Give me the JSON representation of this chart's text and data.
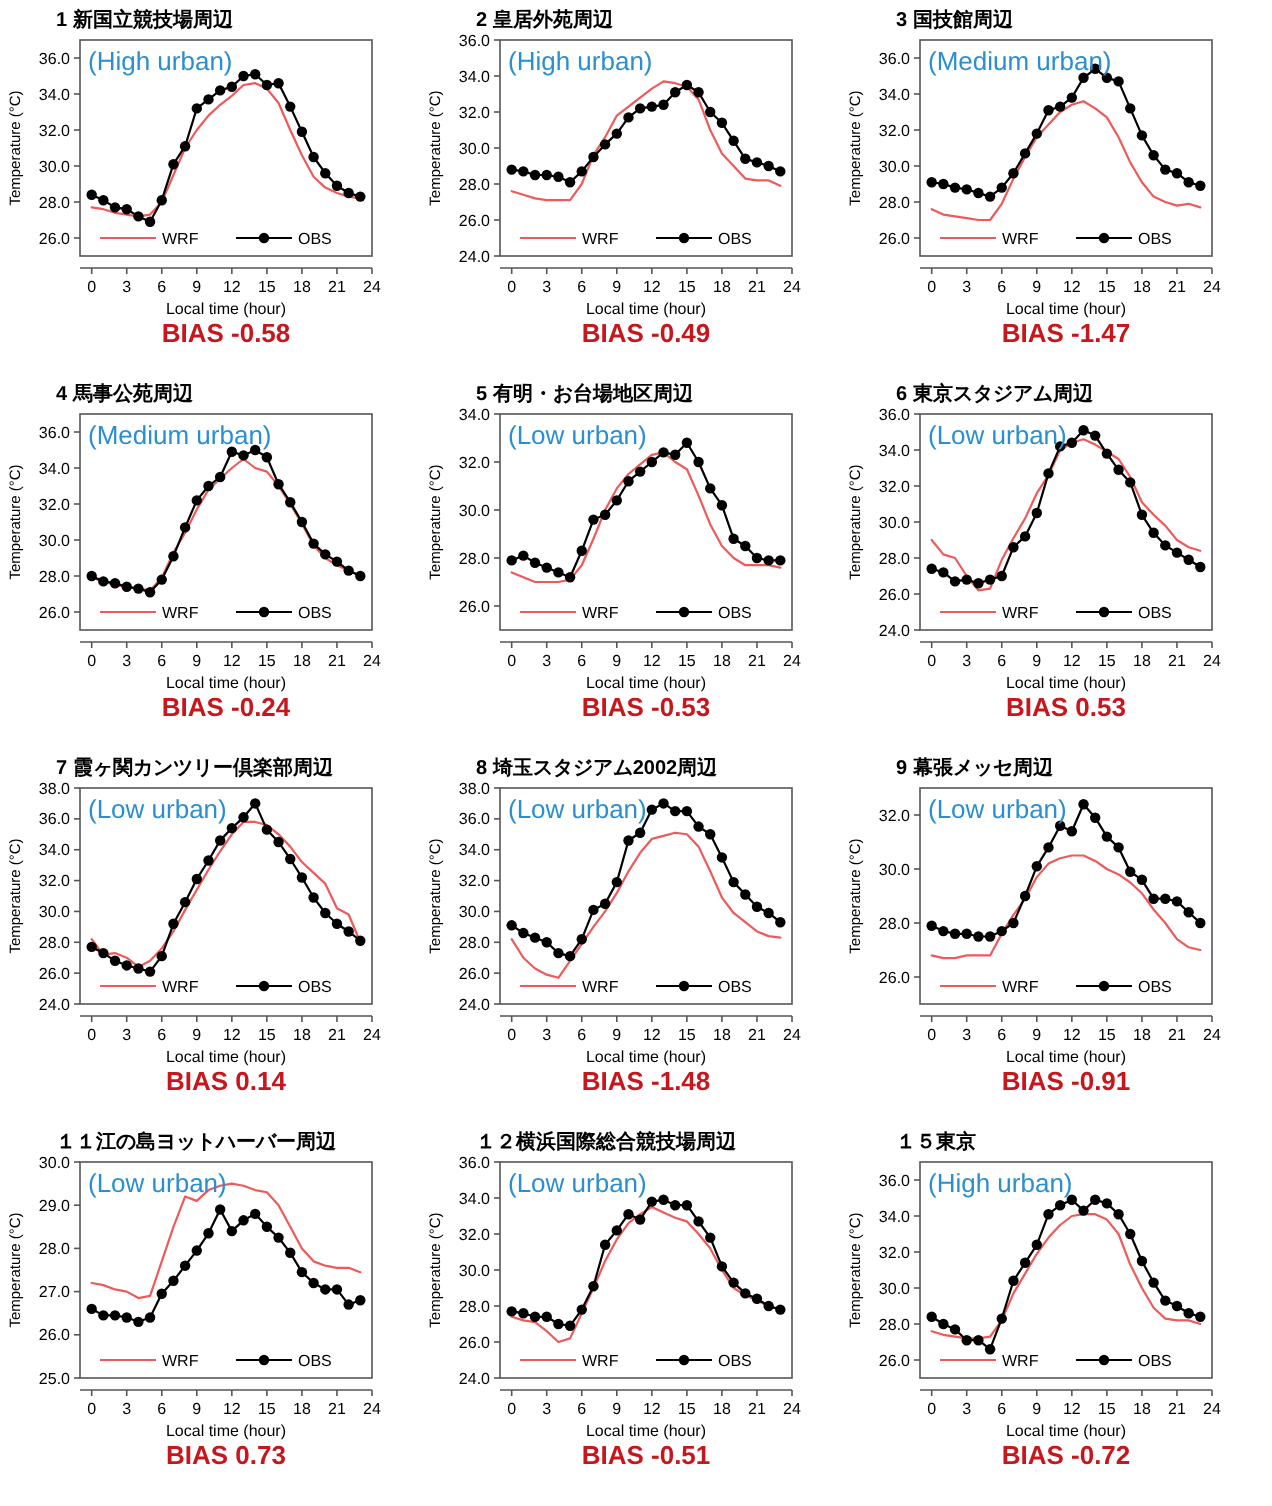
{
  "chart_data": [
    {
      "type": "line",
      "title": "1 新国立競技場周辺",
      "xlabel": "Local time (hour)",
      "ylabel": "Temperature (°C)",
      "annotations": [
        "(High urban)",
        "BIAS -0.58"
      ],
      "legend": "bottom",
      "x": [
        0,
        1,
        2,
        3,
        4,
        5,
        6,
        7,
        8,
        9,
        10,
        11,
        12,
        13,
        14,
        15,
        16,
        17,
        18,
        19,
        20,
        21,
        22,
        23
      ],
      "xlim": [
        -1,
        24
      ],
      "xticks": [
        0,
        3,
        6,
        9,
        12,
        15,
        18,
        21,
        24
      ],
      "ylim": [
        25,
        37
      ],
      "yticks": [
        {
          "value": 26,
          "label": "26.0"
        },
        {
          "value": 28,
          "label": "28.0"
        },
        {
          "value": 30,
          "label": "30.0"
        },
        {
          "value": 32,
          "label": "32.0"
        },
        {
          "value": 34,
          "label": "34.0"
        },
        {
          "value": 36,
          "label": "36.0"
        }
      ],
      "series": [
        {
          "name": "WRF",
          "color": "#ee5a5a",
          "marker": "none",
          "values": [
            27.7,
            27.6,
            27.4,
            27.3,
            27.2,
            27.3,
            28.0,
            29.5,
            31.0,
            32.0,
            32.8,
            33.4,
            33.9,
            34.5,
            34.6,
            34.3,
            33.5,
            32.0,
            30.6,
            29.4,
            28.8,
            28.5,
            28.3,
            28.2
          ]
        },
        {
          "name": "OBS",
          "color": "#000000",
          "marker": "circle",
          "values": [
            28.4,
            28.1,
            27.7,
            27.6,
            27.2,
            26.9,
            28.1,
            30.1,
            31.1,
            33.2,
            33.7,
            34.2,
            34.4,
            35.0,
            35.1,
            34.5,
            34.6,
            33.3,
            31.9,
            30.5,
            29.6,
            28.9,
            28.5,
            28.3
          ]
        }
      ]
    },
    {
      "type": "line",
      "title": "2 皇居外苑周辺",
      "xlabel": "Local time (hour)",
      "ylabel": "Temperature (°C)",
      "annotations": [
        "(High urban)",
        "BIAS -0.49"
      ],
      "legend": "bottom",
      "x": [
        0,
        1,
        2,
        3,
        4,
        5,
        6,
        7,
        8,
        9,
        10,
        11,
        12,
        13,
        14,
        15,
        16,
        17,
        18,
        19,
        20,
        21,
        22,
        23
      ],
      "xlim": [
        -1,
        24
      ],
      "xticks": [
        0,
        3,
        6,
        9,
        12,
        15,
        18,
        21,
        24
      ],
      "ylim": [
        24,
        36
      ],
      "yticks": [
        {
          "value": 24,
          "label": "24.0"
        },
        {
          "value": 26,
          "label": "26.0"
        },
        {
          "value": 28,
          "label": "28.0"
        },
        {
          "value": 30,
          "label": "30.0"
        },
        {
          "value": 32,
          "label": "32.0"
        },
        {
          "value": 34,
          "label": "34.0"
        },
        {
          "value": 36,
          "label": "36.0"
        }
      ],
      "series": [
        {
          "name": "WRF",
          "color": "#ee5a5a",
          "marker": "none",
          "values": [
            27.6,
            27.4,
            27.2,
            27.1,
            27.1,
            27.1,
            28.0,
            29.6,
            30.6,
            31.8,
            32.3,
            32.8,
            33.3,
            33.7,
            33.6,
            33.4,
            32.7,
            31.0,
            29.7,
            29.0,
            28.3,
            28.2,
            28.2,
            27.9
          ]
        },
        {
          "name": "OBS",
          "color": "#000000",
          "marker": "circle",
          "values": [
            28.8,
            28.7,
            28.5,
            28.5,
            28.4,
            28.1,
            28.7,
            29.5,
            30.2,
            30.8,
            31.7,
            32.2,
            32.3,
            32.4,
            33.1,
            33.5,
            33.1,
            32.0,
            31.4,
            30.4,
            29.4,
            29.2,
            29.0,
            28.7
          ]
        }
      ]
    },
    {
      "type": "line",
      "title": "3 国技館周辺",
      "xlabel": "Local time (hour)",
      "ylabel": "Temperature (°C)",
      "annotations": [
        "(Medium urban)",
        "BIAS -1.47"
      ],
      "legend": "bottom",
      "x": [
        0,
        1,
        2,
        3,
        4,
        5,
        6,
        7,
        8,
        9,
        10,
        11,
        12,
        13,
        14,
        15,
        16,
        17,
        18,
        19,
        20,
        21,
        22,
        23
      ],
      "xlim": [
        -1,
        24
      ],
      "xticks": [
        0,
        3,
        6,
        9,
        12,
        15,
        18,
        21,
        24
      ],
      "ylim": [
        25,
        37
      ],
      "yticks": [
        {
          "value": 26,
          "label": "26.0"
        },
        {
          "value": 28,
          "label": "28.0"
        },
        {
          "value": 30,
          "label": "30.0"
        },
        {
          "value": 32,
          "label": "32.0"
        },
        {
          "value": 34,
          "label": "34.0"
        },
        {
          "value": 36,
          "label": "36.0"
        }
      ],
      "series": [
        {
          "name": "WRF",
          "color": "#ee5a5a",
          "marker": "none",
          "values": [
            27.6,
            27.3,
            27.2,
            27.1,
            27.0,
            27.0,
            27.9,
            29.3,
            30.5,
            31.6,
            32.3,
            33.0,
            33.4,
            33.6,
            33.2,
            32.7,
            31.6,
            30.2,
            29.1,
            28.3,
            28.0,
            27.8,
            27.9,
            27.7
          ]
        },
        {
          "name": "OBS",
          "color": "#000000",
          "marker": "circle",
          "values": [
            29.1,
            29.0,
            28.8,
            28.7,
            28.5,
            28.3,
            28.8,
            29.6,
            30.7,
            31.8,
            33.1,
            33.3,
            33.8,
            34.9,
            35.4,
            34.9,
            34.7,
            33.2,
            31.7,
            30.6,
            29.8,
            29.6,
            29.1,
            28.9
          ]
        }
      ]
    },
    {
      "type": "line",
      "title": "4 馬事公苑周辺",
      "xlabel": "Local time (hour)",
      "ylabel": "Temperature (°C)",
      "annotations": [
        "(Medium urban)",
        "BIAS -0.24"
      ],
      "legend": "bottom",
      "x": [
        0,
        1,
        2,
        3,
        4,
        5,
        6,
        7,
        8,
        9,
        10,
        11,
        12,
        13,
        14,
        15,
        16,
        17,
        18,
        19,
        20,
        21,
        22,
        23
      ],
      "xlim": [
        -1,
        24
      ],
      "xticks": [
        0,
        3,
        6,
        9,
        12,
        15,
        18,
        21,
        24
      ],
      "ylim": [
        25,
        37
      ],
      "yticks": [
        {
          "value": 26,
          "label": "26.0"
        },
        {
          "value": 28,
          "label": "28.0"
        },
        {
          "value": 30,
          "label": "30.0"
        },
        {
          "value": 32,
          "label": "32.0"
        },
        {
          "value": 34,
          "label": "34.0"
        },
        {
          "value": 36,
          "label": "36.0"
        }
      ],
      "series": [
        {
          "name": "WRF",
          "color": "#ee5a5a",
          "marker": "none",
          "values": [
            27.9,
            27.7,
            27.5,
            27.4,
            27.3,
            27.2,
            27.9,
            29.3,
            30.4,
            31.7,
            32.8,
            33.4,
            34.0,
            34.5,
            34.0,
            33.8,
            33.0,
            32.0,
            30.9,
            29.7,
            29.0,
            28.6,
            28.3,
            28.0
          ]
        },
        {
          "name": "OBS",
          "color": "#000000",
          "marker": "circle",
          "values": [
            28.0,
            27.7,
            27.6,
            27.4,
            27.3,
            27.1,
            27.8,
            29.1,
            30.7,
            32.2,
            33.0,
            33.5,
            34.9,
            34.7,
            35.0,
            34.6,
            33.1,
            32.1,
            31.0,
            29.8,
            29.2,
            28.8,
            28.3,
            28.0
          ]
        }
      ]
    },
    {
      "type": "line",
      "title": "5 有明・お台場地区周辺",
      "xlabel": "Local time (hour)",
      "ylabel": "Temperature (°C)",
      "annotations": [
        "(Low urban)",
        "BIAS -0.53"
      ],
      "legend": "bottom",
      "x": [
        0,
        1,
        2,
        3,
        4,
        5,
        6,
        7,
        8,
        9,
        10,
        11,
        12,
        13,
        14,
        15,
        16,
        17,
        18,
        19,
        20,
        21,
        22,
        23
      ],
      "xlim": [
        -1,
        24
      ],
      "xticks": [
        0,
        3,
        6,
        9,
        12,
        15,
        18,
        21,
        24
      ],
      "ylim": [
        25,
        34
      ],
      "yticks": [
        {
          "value": 26,
          "label": "26.0"
        },
        {
          "value": 28,
          "label": "28.0"
        },
        {
          "value": 30,
          "label": "30.0"
        },
        {
          "value": 32,
          "label": "32.0"
        },
        {
          "value": 34,
          "label": "34.0"
        }
      ],
      "series": [
        {
          "name": "WRF",
          "color": "#ee5a5a",
          "marker": "none",
          "values": [
            27.4,
            27.2,
            27.0,
            27.0,
            27.0,
            27.1,
            27.7,
            28.8,
            30.0,
            30.9,
            31.5,
            31.9,
            32.3,
            32.4,
            32.0,
            31.7,
            30.6,
            29.4,
            28.5,
            28.0,
            27.7,
            27.7,
            27.7,
            27.6
          ]
        },
        {
          "name": "OBS",
          "color": "#000000",
          "marker": "circle",
          "values": [
            27.9,
            28.1,
            27.8,
            27.6,
            27.4,
            27.2,
            28.3,
            29.6,
            29.8,
            30.4,
            31.2,
            31.6,
            32.0,
            32.4,
            32.3,
            32.8,
            32.0,
            30.9,
            30.2,
            28.8,
            28.5,
            28.0,
            27.9,
            27.9
          ]
        }
      ]
    },
    {
      "type": "line",
      "title": "6 東京スタジアム周辺",
      "xlabel": "Local time (hour)",
      "ylabel": "Temperature (°C)",
      "annotations": [
        "(Low urban)",
        "BIAS 0.53"
      ],
      "legend": "bottom",
      "x": [
        0,
        1,
        2,
        3,
        4,
        5,
        6,
        7,
        8,
        9,
        10,
        11,
        12,
        13,
        14,
        15,
        16,
        17,
        18,
        19,
        20,
        21,
        22,
        23
      ],
      "xlim": [
        -1,
        24
      ],
      "xticks": [
        0,
        3,
        6,
        9,
        12,
        15,
        18,
        21,
        24
      ],
      "ylim": [
        24,
        36
      ],
      "yticks": [
        {
          "value": 24,
          "label": "24.0"
        },
        {
          "value": 26,
          "label": "26.0"
        },
        {
          "value": 28,
          "label": "28.0"
        },
        {
          "value": 30,
          "label": "30.0"
        },
        {
          "value": 32,
          "label": "32.0"
        },
        {
          "value": 34,
          "label": "34.0"
        },
        {
          "value": 36,
          "label": "36.0"
        }
      ],
      "series": [
        {
          "name": "WRF",
          "color": "#ee5a5a",
          "marker": "none",
          "values": [
            29.0,
            28.2,
            28.0,
            27.0,
            26.2,
            26.3,
            27.9,
            29.1,
            30.2,
            31.6,
            32.6,
            34.0,
            34.4,
            34.6,
            34.3,
            33.9,
            33.5,
            32.5,
            31.1,
            30.4,
            29.8,
            29.0,
            28.6,
            28.4
          ]
        },
        {
          "name": "OBS",
          "color": "#000000",
          "marker": "circle",
          "values": [
            27.4,
            27.2,
            26.7,
            26.8,
            26.6,
            26.8,
            27.0,
            28.6,
            29.2,
            30.5,
            32.7,
            34.2,
            34.4,
            35.1,
            34.8,
            33.8,
            32.9,
            32.2,
            30.4,
            29.4,
            28.7,
            28.3,
            27.9,
            27.5
          ]
        }
      ]
    },
    {
      "type": "line",
      "title": "7 霞ヶ関カンツリー倶楽部周辺",
      "xlabel": "Local time (hour)",
      "ylabel": "Temperature (°C)",
      "annotations": [
        "(Low urban)",
        "BIAS 0.14"
      ],
      "legend": "bottom",
      "x": [
        0,
        1,
        2,
        3,
        4,
        5,
        6,
        7,
        8,
        9,
        10,
        11,
        12,
        13,
        14,
        15,
        16,
        17,
        18,
        19,
        20,
        21,
        22,
        23
      ],
      "xlim": [
        -1,
        24
      ],
      "xticks": [
        0,
        3,
        6,
        9,
        12,
        15,
        18,
        21,
        24
      ],
      "ylim": [
        24,
        38
      ],
      "yticks": [
        {
          "value": 24,
          "label": "24.0"
        },
        {
          "value": 26,
          "label": "26.0"
        },
        {
          "value": 28,
          "label": "28.0"
        },
        {
          "value": 30,
          "label": "30.0"
        },
        {
          "value": 32,
          "label": "32.0"
        },
        {
          "value": 34,
          "label": "34.0"
        },
        {
          "value": 36,
          "label": "36.0"
        },
        {
          "value": 38,
          "label": "38.0"
        }
      ],
      "series": [
        {
          "name": "WRF",
          "color": "#ee5a5a",
          "marker": "none",
          "values": [
            28.2,
            27.2,
            27.3,
            27.0,
            26.4,
            26.8,
            27.6,
            28.7,
            30.1,
            31.4,
            32.7,
            33.9,
            35.0,
            35.8,
            35.8,
            35.6,
            35.0,
            34.2,
            33.2,
            32.5,
            31.8,
            30.2,
            29.8,
            28.0
          ]
        },
        {
          "name": "OBS",
          "color": "#000000",
          "marker": "circle",
          "values": [
            27.7,
            27.3,
            26.8,
            26.5,
            26.3,
            26.1,
            27.1,
            29.2,
            30.6,
            32.1,
            33.3,
            34.6,
            35.4,
            36.1,
            37.0,
            35.3,
            34.5,
            33.4,
            32.2,
            30.9,
            29.9,
            29.2,
            28.7,
            28.1
          ]
        }
      ]
    },
    {
      "type": "line",
      "title": "8 埼玉スタジアム2002周辺",
      "xlabel": "Local time (hour)",
      "ylabel": "Temperature (°C)",
      "annotations": [
        "(Low urban)",
        "BIAS -1.48"
      ],
      "legend": "bottom",
      "x": [
        0,
        1,
        2,
        3,
        4,
        5,
        6,
        7,
        8,
        9,
        10,
        11,
        12,
        13,
        14,
        15,
        16,
        17,
        18,
        19,
        20,
        21,
        22,
        23
      ],
      "xlim": [
        -1,
        24
      ],
      "xticks": [
        0,
        3,
        6,
        9,
        12,
        15,
        18,
        21,
        24
      ],
      "ylim": [
        24,
        38
      ],
      "yticks": [
        {
          "value": 24,
          "label": "24.0"
        },
        {
          "value": 26,
          "label": "26.0"
        },
        {
          "value": 28,
          "label": "28.0"
        },
        {
          "value": 30,
          "label": "30.0"
        },
        {
          "value": 32,
          "label": "32.0"
        },
        {
          "value": 34,
          "label": "34.0"
        },
        {
          "value": 36,
          "label": "36.0"
        },
        {
          "value": 38,
          "label": "38.0"
        }
      ],
      "series": [
        {
          "name": "WRF",
          "color": "#ee5a5a",
          "marker": "none",
          "values": [
            28.2,
            27.0,
            26.3,
            25.9,
            25.7,
            26.8,
            27.9,
            29.0,
            30.0,
            31.2,
            32.6,
            33.8,
            34.7,
            34.9,
            35.1,
            35.0,
            34.2,
            32.6,
            30.9,
            29.9,
            29.3,
            28.7,
            28.4,
            28.3
          ]
        },
        {
          "name": "OBS",
          "color": "#000000",
          "marker": "circle",
          "values": [
            29.1,
            28.6,
            28.3,
            28.0,
            27.3,
            27.1,
            28.2,
            30.1,
            30.5,
            31.9,
            34.6,
            35.1,
            36.6,
            37.0,
            36.5,
            36.5,
            35.5,
            35.0,
            33.5,
            31.9,
            31.1,
            30.3,
            29.9,
            29.3
          ]
        }
      ]
    },
    {
      "type": "line",
      "title": "9 幕張メッセ周辺",
      "xlabel": "Local time (hour)",
      "ylabel": "Temperature (°C)",
      "annotations": [
        "(Low urban)",
        "BIAS -0.91"
      ],
      "legend": "bottom",
      "x": [
        0,
        1,
        2,
        3,
        4,
        5,
        6,
        7,
        8,
        9,
        10,
        11,
        12,
        13,
        14,
        15,
        16,
        17,
        18,
        19,
        20,
        21,
        22,
        23
      ],
      "xlim": [
        -1,
        24
      ],
      "xticks": [
        0,
        3,
        6,
        9,
        12,
        15,
        18,
        21,
        24
      ],
      "ylim": [
        25,
        33
      ],
      "yticks": [
        {
          "value": 26,
          "label": "26.0"
        },
        {
          "value": 28,
          "label": "28.0"
        },
        {
          "value": 30,
          "label": "30.0"
        },
        {
          "value": 32,
          "label": "32.0"
        }
      ],
      "series": [
        {
          "name": "WRF",
          "color": "#ee5a5a",
          "marker": "none",
          "values": [
            26.8,
            26.7,
            26.7,
            26.8,
            26.8,
            26.8,
            27.6,
            28.3,
            28.9,
            29.7,
            30.2,
            30.4,
            30.5,
            30.5,
            30.3,
            30.0,
            29.8,
            29.5,
            29.1,
            28.5,
            28.0,
            27.4,
            27.1,
            27.0
          ]
        },
        {
          "name": "OBS",
          "color": "#000000",
          "marker": "circle",
          "values": [
            27.9,
            27.7,
            27.6,
            27.6,
            27.5,
            27.5,
            27.7,
            28.0,
            29.0,
            30.1,
            30.8,
            31.6,
            31.4,
            32.4,
            31.9,
            31.2,
            30.8,
            29.9,
            29.6,
            28.9,
            28.9,
            28.8,
            28.4,
            28.0
          ]
        }
      ]
    },
    {
      "type": "line",
      "title": "１１江の島ヨットハーバー周辺",
      "xlabel": "Local time (hour)",
      "ylabel": "Temperature (°C)",
      "annotations": [
        "(Low urban)",
        "BIAS 0.73"
      ],
      "legend": "bottom",
      "x": [
        0,
        1,
        2,
        3,
        4,
        5,
        6,
        7,
        8,
        9,
        10,
        11,
        12,
        13,
        14,
        15,
        16,
        17,
        18,
        19,
        20,
        21,
        22,
        23
      ],
      "xlim": [
        -1,
        24
      ],
      "xticks": [
        0,
        3,
        6,
        9,
        12,
        15,
        18,
        21,
        24
      ],
      "ylim": [
        25,
        30
      ],
      "yticks": [
        {
          "value": 25,
          "label": "25.0"
        },
        {
          "value": 26,
          "label": "26.0"
        },
        {
          "value": 27,
          "label": "27.0"
        },
        {
          "value": 28,
          "label": "28.0"
        },
        {
          "value": 29,
          "label": "29.0"
        },
        {
          "value": 30,
          "label": "30.0"
        }
      ],
      "series": [
        {
          "name": "WRF",
          "color": "#ee5a5a",
          "marker": "none",
          "values": [
            27.2,
            27.15,
            27.05,
            27.0,
            26.85,
            26.9,
            27.7,
            28.5,
            29.2,
            29.1,
            29.35,
            29.45,
            29.5,
            29.45,
            29.35,
            29.3,
            29.0,
            28.5,
            28.0,
            27.7,
            27.6,
            27.55,
            27.55,
            27.45
          ]
        },
        {
          "name": "OBS",
          "color": "#000000",
          "marker": "circle",
          "values": [
            26.6,
            26.45,
            26.45,
            26.4,
            26.3,
            26.4,
            26.95,
            27.25,
            27.6,
            27.95,
            28.35,
            28.9,
            28.4,
            28.65,
            28.8,
            28.5,
            28.25,
            27.9,
            27.45,
            27.2,
            27.05,
            27.05,
            26.7,
            26.8
          ]
        }
      ]
    },
    {
      "type": "line",
      "title": "１２横浜国際総合競技場周辺",
      "xlabel": "Local time (hour)",
      "ylabel": "Temperature (°C)",
      "annotations": [
        "(Low urban)",
        "BIAS -0.51"
      ],
      "legend": "bottom",
      "x": [
        0,
        1,
        2,
        3,
        4,
        5,
        6,
        7,
        8,
        9,
        10,
        11,
        12,
        13,
        14,
        15,
        16,
        17,
        18,
        19,
        20,
        21,
        22,
        23
      ],
      "xlim": [
        -1,
        24
      ],
      "xticks": [
        0,
        3,
        6,
        9,
        12,
        15,
        18,
        21,
        24
      ],
      "ylim": [
        24,
        36
      ],
      "yticks": [
        {
          "value": 24,
          "label": "24.0"
        },
        {
          "value": 26,
          "label": "26.0"
        },
        {
          "value": 28,
          "label": "28.0"
        },
        {
          "value": 30,
          "label": "30.0"
        },
        {
          "value": 32,
          "label": "32.0"
        },
        {
          "value": 34,
          "label": "34.0"
        },
        {
          "value": 36,
          "label": "36.0"
        }
      ],
      "series": [
        {
          "name": "WRF",
          "color": "#ee5a5a",
          "marker": "none",
          "values": [
            27.4,
            27.2,
            27.1,
            26.6,
            26.0,
            26.2,
            27.6,
            29.0,
            30.5,
            31.7,
            32.6,
            33.1,
            33.5,
            33.2,
            32.9,
            32.7,
            32.0,
            31.2,
            30.0,
            29.0,
            28.6,
            28.3,
            28.0,
            27.8
          ]
        },
        {
          "name": "OBS",
          "color": "#000000",
          "marker": "circle",
          "values": [
            27.7,
            27.6,
            27.4,
            27.4,
            27.0,
            26.9,
            27.8,
            29.1,
            31.4,
            32.2,
            33.1,
            32.8,
            33.8,
            33.9,
            33.6,
            33.6,
            32.7,
            31.8,
            30.2,
            29.3,
            28.7,
            28.4,
            28.0,
            27.8
          ]
        }
      ]
    },
    {
      "type": "line",
      "title": "１５東京",
      "xlabel": "Local time (hour)",
      "ylabel": "Temperature (°C)",
      "annotations": [
        "(High urban)",
        "BIAS -0.72"
      ],
      "legend": "bottom",
      "x": [
        0,
        1,
        2,
        3,
        4,
        5,
        6,
        7,
        8,
        9,
        10,
        11,
        12,
        13,
        14,
        15,
        16,
        17,
        18,
        19,
        20,
        21,
        22,
        23
      ],
      "xlim": [
        -1,
        24
      ],
      "xticks": [
        0,
        3,
        6,
        9,
        12,
        15,
        18,
        21,
        24
      ],
      "ylim": [
        25,
        37
      ],
      "yticks": [
        {
          "value": 26,
          "label": "26.0"
        },
        {
          "value": 28,
          "label": "28.0"
        },
        {
          "value": 30,
          "label": "30.0"
        },
        {
          "value": 32,
          "label": "32.0"
        },
        {
          "value": 34,
          "label": "34.0"
        },
        {
          "value": 36,
          "label": "36.0"
        }
      ],
      "series": [
        {
          "name": "WRF",
          "color": "#ee5a5a",
          "marker": "none",
          "values": [
            27.6,
            27.4,
            27.3,
            27.2,
            27.2,
            27.3,
            28.2,
            29.7,
            30.8,
            31.9,
            32.8,
            33.5,
            34.0,
            34.1,
            34.1,
            33.8,
            33.0,
            31.3,
            30.0,
            28.9,
            28.3,
            28.2,
            28.2,
            28.0
          ]
        },
        {
          "name": "OBS",
          "color": "#000000",
          "marker": "circle",
          "values": [
            28.4,
            28.0,
            27.7,
            27.1,
            27.1,
            26.6,
            28.3,
            30.4,
            31.4,
            32.4,
            34.1,
            34.6,
            34.9,
            34.3,
            34.9,
            34.7,
            34.1,
            33.0,
            31.5,
            30.3,
            29.3,
            29.0,
            28.6,
            28.4
          ]
        }
      ]
    }
  ]
}
